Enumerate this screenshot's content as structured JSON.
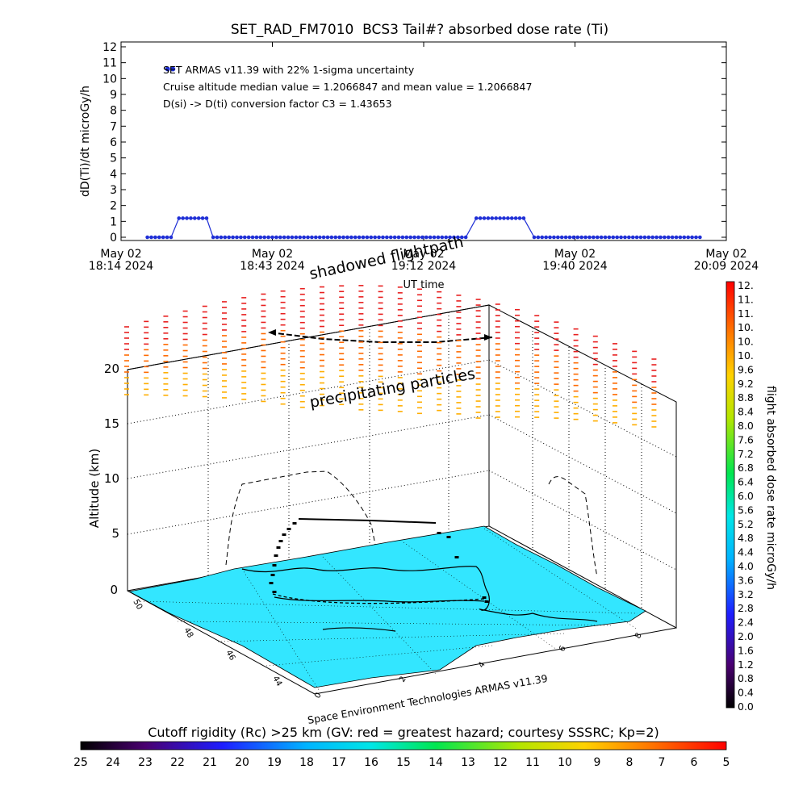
{
  "chart_data": [
    {
      "type": "line",
      "title": "SET_RAD_FM7010  BCS3 Tail#? absorbed dose rate (Ti)",
      "xlabel": "UT time",
      "ylabel": "dD(Ti)/dt microGy/h",
      "ylim": [
        0,
        12
      ],
      "yticks": [
        "0",
        "1",
        "2",
        "3",
        "4",
        "5",
        "6",
        "7",
        "8",
        "9",
        "10",
        "11",
        "12"
      ],
      "xticks": [
        {
          "top": "May 02",
          "bottom": "18:14 2024"
        },
        {
          "top": "May 02",
          "bottom": "18:43 2024"
        },
        {
          "top": "May 02",
          "bottom": "19:12 2024"
        },
        {
          "top": "May 02",
          "bottom": "19:40 2024"
        },
        {
          "top": "May 02",
          "bottom": "20:09 2024"
        }
      ],
      "xlim_minutes": [
        0,
        115
      ],
      "annotations": [
        "SET ARMAS v11.39 with 22% 1-sigma uncertainty",
        "Cruise altitude median value = 1.2066847 and mean value = 1.2066847",
        "D(si) -> D(ti) conversion factor C3 = 1.43653"
      ],
      "series_color": "#1f2fd6",
      "series": [
        {
          "segments_minutes": [
            {
              "from": 5.0,
              "to": 9.5,
              "value": 0
            },
            {
              "from": 11.0,
              "to": 16.5,
              "value": 1.2
            },
            {
              "from": 17.5,
              "to": 66.0,
              "value": 0
            },
            {
              "from": 67.5,
              "to": 77.0,
              "value": 1.2
            },
            {
              "from": 78.5,
              "to": 110.0,
              "value": 0
            }
          ],
          "legend_marker_minutes": [
            11.0,
            12.0
          ],
          "legend_marker_value": 10.5
        }
      ]
    },
    {
      "type": "scatter",
      "subtitle_labels": [
        "shadowed flightpath",
        "precipitating particles"
      ],
      "zlabel": "Altitude (km)",
      "zticks": [
        "0",
        "5",
        "10",
        "15",
        "20"
      ],
      "lat_ticks": [
        "50",
        "48",
        "46",
        "44"
      ],
      "lon_ticks": [
        "0",
        "2",
        "4",
        "6",
        "8"
      ],
      "footer": "Space Environment Technologies ARMAS v11.39",
      "map_color": "#33e6ff",
      "colorbar_right": {
        "label": "flight absorbed dose rate microGy/h",
        "ticks": [
          "12.",
          "11.",
          "11.",
          "10.",
          "10.",
          "10.",
          "9.6",
          "9.2",
          "8.8",
          "8.4",
          "8.0",
          "7.6",
          "7.2",
          "6.8",
          "6.4",
          "6.0",
          "5.6",
          "5.2",
          "4.8",
          "4.4",
          "4.0",
          "3.6",
          "3.2",
          "2.8",
          "2.4",
          "2.0",
          "1.6",
          "1.2",
          "0.8",
          "0.4",
          "0.0"
        ]
      },
      "colorbar_bottom": {
        "label": "Cutoff rigidity (Rc) >25 km (GV: red = greatest hazard; courtesy SSSRC; Kp=2)",
        "ticks": [
          "25",
          "24",
          "23",
          "22",
          "21",
          "20",
          "19",
          "18",
          "17",
          "16",
          "15",
          "14",
          "13",
          "12",
          "11",
          "10",
          "9",
          "8",
          "7",
          "6",
          "5"
        ]
      }
    }
  ]
}
